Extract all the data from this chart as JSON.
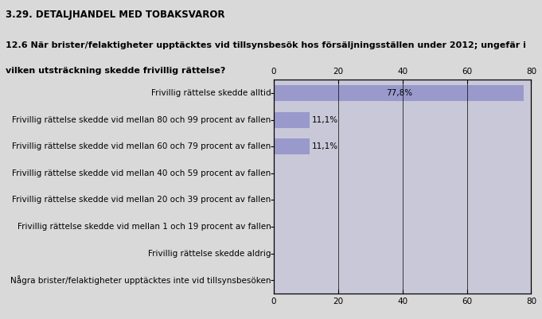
{
  "title": "3.29. DETALJHANDEL MED TOBAKSVAROR",
  "subtitle": "12.6 När brister/felaktigheter upptäcktes vid tillsynsbesök hos försäljningsställen under 2012; ungefär i\nvilken utsträckning skedde frivillig rättelse?",
  "categories": [
    "Frivillig rättelse skedde alltid",
    "Frivillig rättelse skedde vid mellan 80 och 99 procent av fallen",
    "Frivillig rättelse skedde vid mellan 60 och 79 procent av fallen",
    "Frivillig rättelse skedde vid mellan 40 och 59 procent av fallen",
    "Frivillig rättelse skedde vid mellan 20 och 39 procent av fallen",
    "Frivillig rättelse skedde vid mellan 1 och 19 procent av fallen",
    "Frivillig rättelse skedde aldrig",
    "Några brister/felaktigheter upptäcktes inte vid tillsynsbesöken"
  ],
  "values": [
    77.8,
    11.1,
    11.1,
    0,
    0,
    0,
    0,
    0
  ],
  "labels": [
    "77,8%",
    "11,1%",
    "11,1%",
    "",
    "",
    "",
    "",
    ""
  ],
  "label_inside": [
    true,
    false,
    false,
    false,
    false,
    false,
    false,
    false
  ],
  "bar_color": "#9999cc",
  "background_color": "#d9d9d9",
  "plot_background_color": "#c8c8d8",
  "xlim": [
    0,
    80
  ],
  "xticks": [
    0,
    20,
    40,
    60,
    80
  ],
  "title_fontsize": 8.5,
  "subtitle_fontsize": 8.0,
  "label_fontsize": 7.5,
  "tick_fontsize": 7.5,
  "figsize": [
    6.81,
    4.01
  ],
  "dpi": 100
}
